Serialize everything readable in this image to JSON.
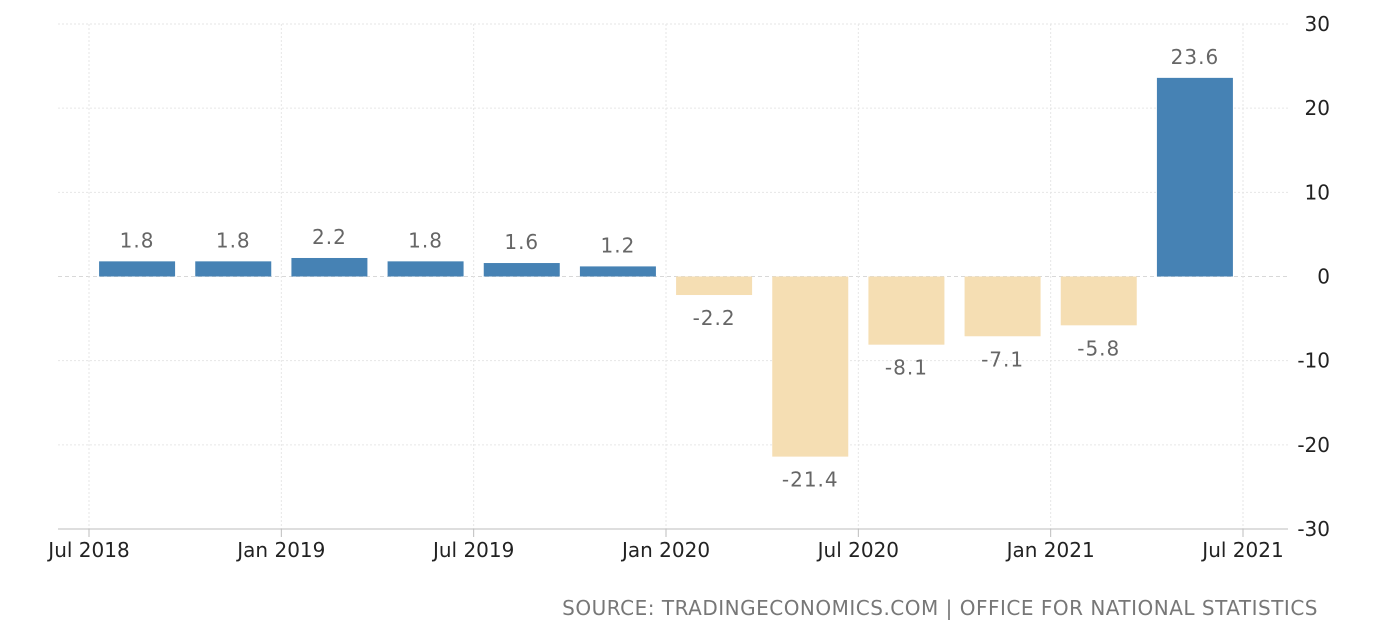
{
  "chart_data": {
    "type": "bar",
    "x": [
      "2018-Q3",
      "2018-Q4",
      "2019-Q1",
      "2019-Q2",
      "2019-Q3",
      "2019-Q4",
      "2020-Q1",
      "2020-Q2",
      "2020-Q3",
      "2020-Q4",
      "2021-Q1",
      "2021-Q2"
    ],
    "values": [
      1.8,
      1.8,
      2.2,
      1.8,
      1.6,
      1.2,
      -2.2,
      -21.4,
      -8.1,
      -7.1,
      -5.8,
      23.6
    ],
    "data_labels": [
      "1.8",
      "1.8",
      "2.2",
      "1.8",
      "1.6",
      "1.2",
      "-2.2",
      "-21.4",
      "-8.1",
      "-7.1",
      "-5.8",
      "23.6"
    ],
    "x_tick_labels": [
      "Jul 2018",
      "Jan 2019",
      "Jul 2019",
      "Jan 2020",
      "Jul 2020",
      "Jan 2021",
      "Jul 2021"
    ],
    "y_ticks": [
      30,
      20,
      10,
      0,
      -10,
      -20,
      -30
    ],
    "y_tick_labels": [
      "30",
      "20",
      "10",
      "0",
      "-10",
      "-20",
      "-30"
    ],
    "ylim": [
      -30,
      30
    ],
    "y_axis_side": "right",
    "grid": true,
    "colors": {
      "positive": "#4682b4",
      "negative": "#f5deb3"
    },
    "title": "",
    "xlabel": "",
    "ylabel": ""
  },
  "source": "SOURCE: TRADINGECONOMICS.COM | OFFICE FOR NATIONAL STATISTICS"
}
